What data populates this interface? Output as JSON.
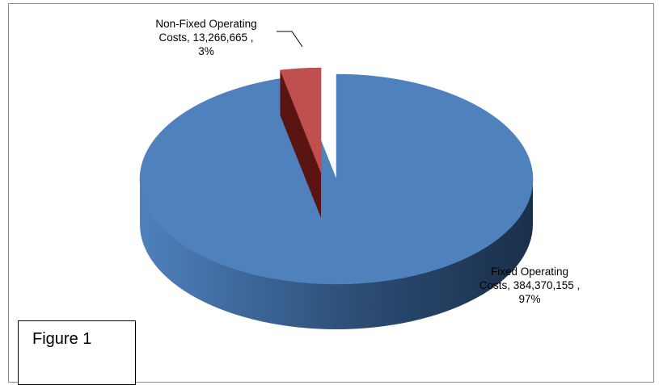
{
  "chart_data": {
    "type": "pie",
    "style": "3d-exploded",
    "slices": [
      {
        "name": "Fixed Operating Costs",
        "value": 384370155,
        "value_label": "384,370,155",
        "percent_label": "97%",
        "label_lines": [
          "Fixed Operating",
          "Costs,  384,370,155 ,",
          "97%"
        ],
        "color": "#4F81BD",
        "side_color": "#2C4D75"
      },
      {
        "name": "Non-Fixed Operating Costs",
        "value": 13266665,
        "value_label": "13,266,665",
        "percent_label": "3%",
        "label_lines": [
          "Non-Fixed Operating",
          "Costs,  13,266,665 ,",
          "3%"
        ],
        "color": "#C0504D",
        "side_color": "#6B1F1D"
      }
    ],
    "legend": "none",
    "data_labels": "outside with leader line"
  },
  "figure_caption": "Figure 1"
}
